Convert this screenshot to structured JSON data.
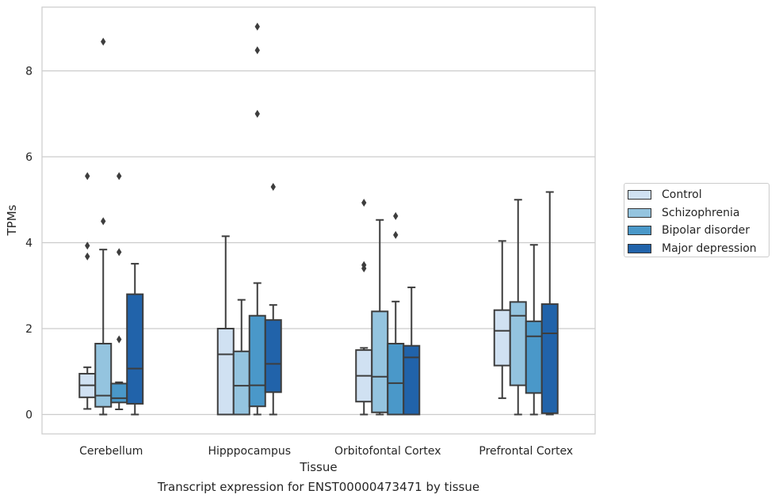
{
  "chart_data": {
    "type": "box",
    "title": "",
    "caption": "Transcript expression for ENST00000473471 by tissue",
    "xlabel": "Tissue",
    "ylabel": "TPMs",
    "ylim": [
      -0.45,
      9.6
    ],
    "yticks": [
      0,
      2,
      4,
      6,
      8
    ],
    "grid": "horizontal",
    "legend_position": "right",
    "categories": [
      "Cerebellum",
      "Hipppocampus",
      "Orbitofontal Cortex",
      "Prefrontal Cortex"
    ],
    "series": [
      {
        "name": "Control",
        "color": "#d0e1f2",
        "boxes": [
          {
            "whislo": 0.13,
            "q1": 0.4,
            "med": 0.68,
            "q3": 0.95,
            "whishi": 1.1,
            "fliers": [
              3.68,
              3.93,
              5.55
            ]
          },
          {
            "whislo": 0.0,
            "q1": 0.0,
            "med": 1.4,
            "q3": 2.0,
            "whishi": 4.15,
            "fliers": []
          },
          {
            "whislo": 0.0,
            "q1": 0.3,
            "med": 0.9,
            "q3": 1.5,
            "whishi": 1.55,
            "fliers": [
              3.4,
              3.48,
              4.93
            ]
          },
          {
            "whislo": 0.38,
            "q1": 1.14,
            "med": 1.95,
            "q3": 2.43,
            "whishi": 4.04,
            "fliers": []
          }
        ]
      },
      {
        "name": "Schizophrenia",
        "color": "#94c4df",
        "boxes": [
          {
            "whislo": 0.0,
            "q1": 0.18,
            "med": 0.44,
            "q3": 1.65,
            "whishi": 3.84,
            "fliers": [
              4.5,
              8.68
            ]
          },
          {
            "whislo": 0.0,
            "q1": 0.0,
            "med": 0.67,
            "q3": 1.47,
            "whishi": 2.67,
            "fliers": []
          },
          {
            "whislo": 0.0,
            "q1": 0.05,
            "med": 0.88,
            "q3": 2.4,
            "whishi": 4.53,
            "fliers": []
          },
          {
            "whislo": 0.0,
            "q1": 0.68,
            "med": 2.3,
            "q3": 2.62,
            "whishi": 5.0,
            "fliers": []
          }
        ]
      },
      {
        "name": "Bipolar disorder",
        "color": "#4a98c9",
        "boxes": [
          {
            "whislo": 0.12,
            "q1": 0.28,
            "med": 0.38,
            "q3": 0.72,
            "whishi": 0.75,
            "fliers": [
              1.75,
              3.78,
              5.55
            ]
          },
          {
            "whislo": 0.0,
            "q1": 0.19,
            "med": 0.68,
            "q3": 2.3,
            "whishi": 3.06,
            "fliers": [
              7.0,
              8.48,
              9.03
            ]
          },
          {
            "whislo": 0.0,
            "q1": 0.0,
            "med": 0.73,
            "q3": 1.65,
            "whishi": 2.63,
            "fliers": [
              4.18,
              4.62
            ]
          },
          {
            "whislo": 0.0,
            "q1": 0.5,
            "med": 1.82,
            "q3": 2.17,
            "whishi": 3.95,
            "fliers": []
          }
        ]
      },
      {
        "name": "Major depression",
        "color": "#2163aa",
        "boxes": [
          {
            "whislo": 0.0,
            "q1": 0.25,
            "med": 1.07,
            "q3": 2.8,
            "whishi": 3.51,
            "fliers": []
          },
          {
            "whislo": 0.0,
            "q1": 0.52,
            "med": 1.18,
            "q3": 2.2,
            "whishi": 2.55,
            "fliers": [
              5.3
            ]
          },
          {
            "whislo": 0.0,
            "q1": 0.0,
            "med": 1.33,
            "q3": 1.6,
            "whishi": 2.96,
            "fliers": []
          },
          {
            "whislo": 0.0,
            "q1": 0.03,
            "med": 1.89,
            "q3": 2.57,
            "whishi": 5.18,
            "fliers": []
          }
        ]
      }
    ]
  }
}
